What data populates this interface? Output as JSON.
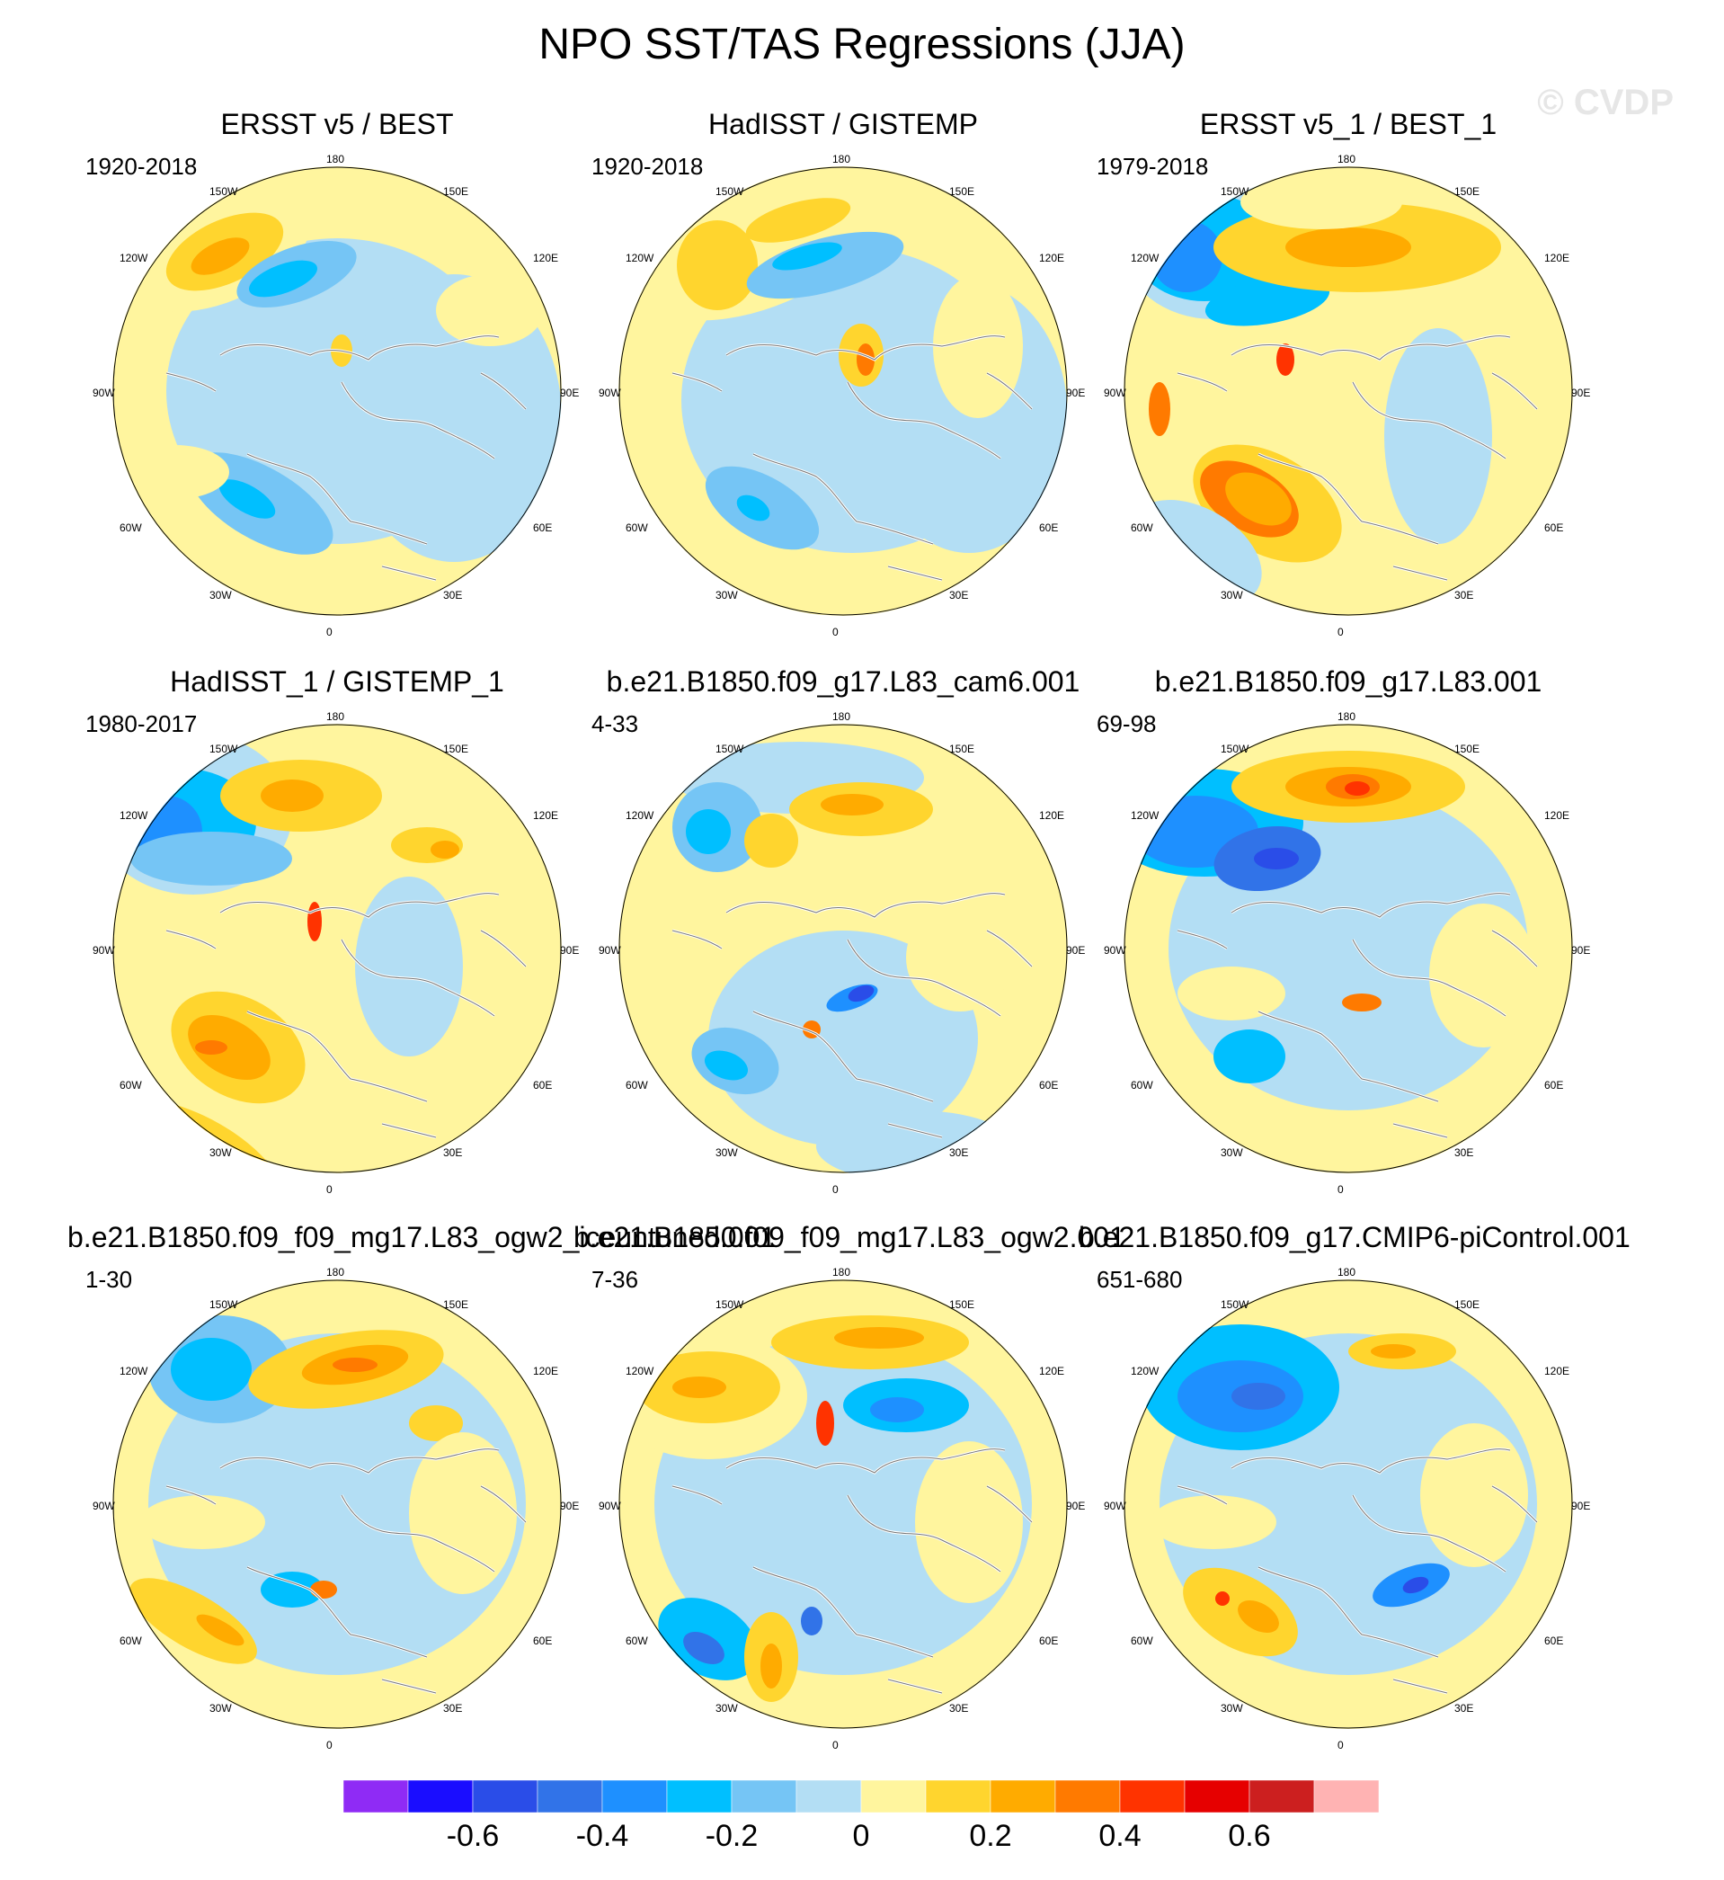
{
  "title": "NPO SST/TAS Regressions (JJA)",
  "copyright": "© CVDP",
  "longitude_labels": {
    "top": "180",
    "bottom": "0",
    "upper_left": "150W",
    "upper_right": "150E",
    "left_upper": "120W",
    "right_upper": "120E",
    "left_mid": "90W",
    "right_mid": "90E",
    "left_lower": "60W",
    "right_lower": "60E",
    "lower_left": "30W",
    "lower_right": "30E"
  },
  "panels": [
    {
      "title": "ERSST v5 / BEST",
      "years": "1920-2018"
    },
    {
      "title": "HadISST / GISTEMP",
      "years": "1920-2018"
    },
    {
      "title": "ERSST v5_1 / BEST_1",
      "years": "1979-2018"
    },
    {
      "title": "HadISST_1 / GISTEMP_1",
      "years": "1980-2017"
    },
    {
      "title": "b.e21.B1850.f09_g17.L83_cam6.001",
      "years": "4-33"
    },
    {
      "title": "b.e21.B1850.f09_g17.L83.001",
      "years": "69-98"
    },
    {
      "title": "b.e21.B1850.f09_f09_mg17.L83_ogw2_iceuntuned.001",
      "years": "1-30"
    },
    {
      "title": "b.e21.B1850.f09_f09_mg17.L83_ogw2.001",
      "years": "7-36"
    },
    {
      "title": "b.e21.B1850.f09_g17.CMIP6-piControl.001",
      "years": "651-680"
    }
  ],
  "colorbar": {
    "labels": [
      "-0.6",
      "-0.4",
      "-0.2",
      "0",
      "0.2",
      "0.4",
      "0.6"
    ],
    "colors": [
      "#8f2bf5",
      "#1a0dff",
      "#2a4de8",
      "#3173e8",
      "#1e90ff",
      "#00bfff",
      "#75c5f5",
      "#b3def4",
      "#fff59e",
      "#ffd52e",
      "#ffab00",
      "#ff7a00",
      "#ff3300",
      "#e60000",
      "#cc1f1f",
      "#ffb3b3"
    ]
  },
  "chart_data": {
    "type": "contour-map",
    "projection": "north polar stereographic",
    "variable": "SST/TAS regression onto NPO index",
    "season": "JJA",
    "levels": [
      -0.7,
      -0.6,
      -0.5,
      -0.4,
      -0.3,
      -0.2,
      -0.1,
      0,
      0.1,
      0.2,
      0.3,
      0.4,
      0.5,
      0.6,
      0.7
    ],
    "panel_count": 9,
    "layout": "3x3 grid"
  }
}
